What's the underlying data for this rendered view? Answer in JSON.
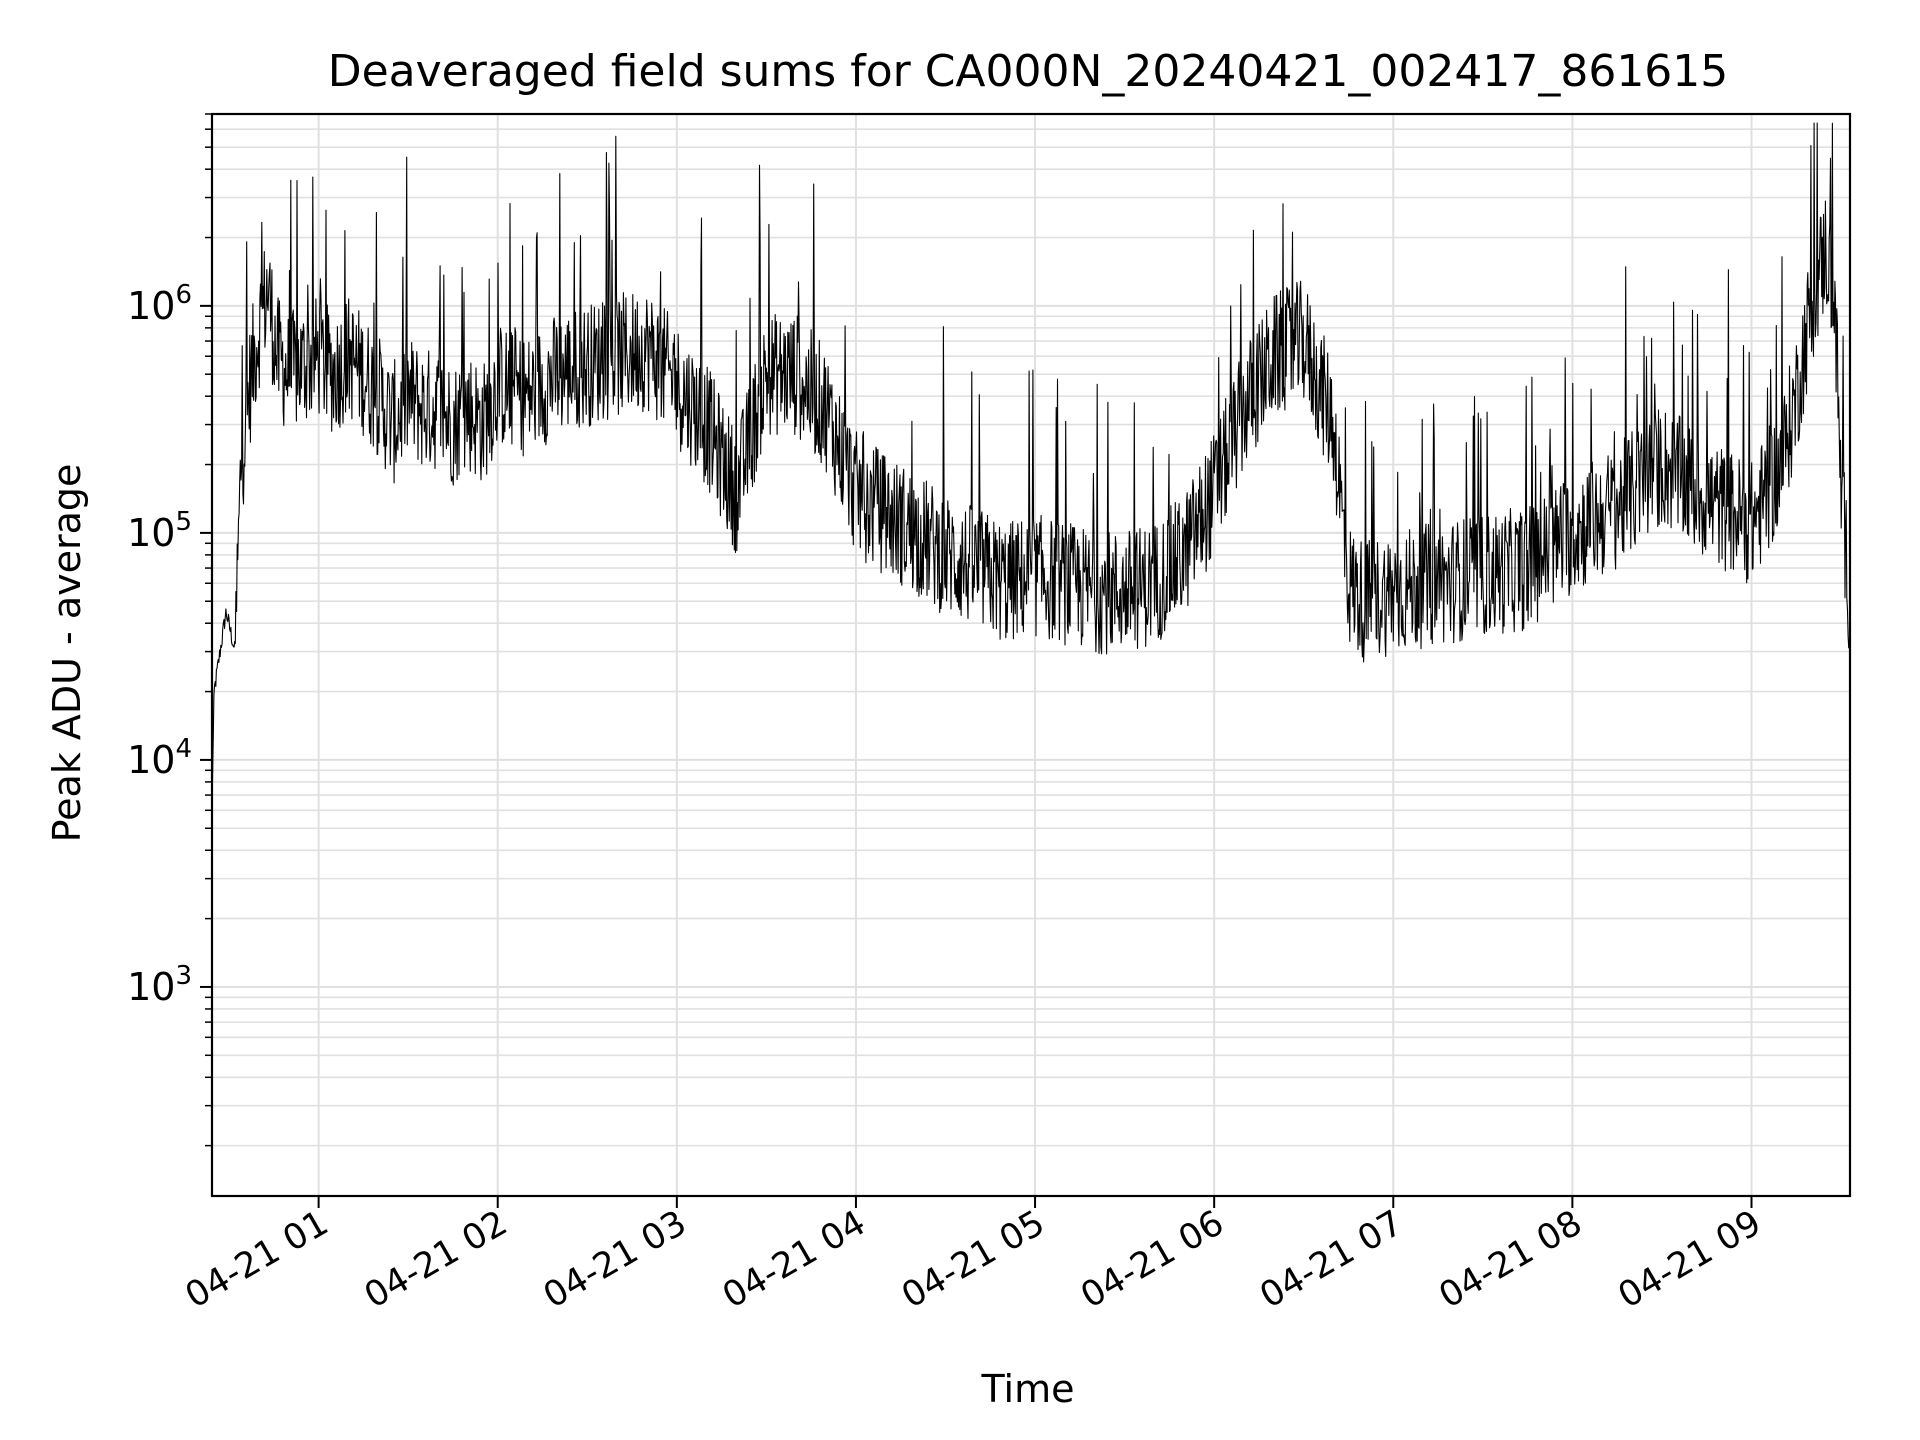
{
  "chart_data": {
    "type": "line",
    "title": "Deaveraged field sums for CA000N_20240421_002417_861615",
    "xlabel": "Time",
    "ylabel": "Peak ADU - average",
    "yscale": "log",
    "ylim": [
      120,
      7000000
    ],
    "xlim": [
      "2024-04-21 00:24:17",
      "2024-04-21 09:33:00"
    ],
    "grid": true,
    "line_color": "#000000",
    "grid_color": "#e0e0e0",
    "x_ticks": [
      {
        "value": "2024-04-21 01:00",
        "label": "04-21 01"
      },
      {
        "value": "2024-04-21 02:00",
        "label": "04-21 02"
      },
      {
        "value": "2024-04-21 03:00",
        "label": "04-21 03"
      },
      {
        "value": "2024-04-21 04:00",
        "label": "04-21 04"
      },
      {
        "value": "2024-04-21 05:00",
        "label": "04-21 05"
      },
      {
        "value": "2024-04-21 06:00",
        "label": "04-21 06"
      },
      {
        "value": "2024-04-21 07:00",
        "label": "04-21 07"
      },
      {
        "value": "2024-04-21 08:00",
        "label": "04-21 08"
      },
      {
        "value": "2024-04-21 09:00",
        "label": "04-21 09"
      }
    ],
    "y_ticks": [
      {
        "value": 1000,
        "base": "10",
        "exp": "3"
      },
      {
        "value": 10000,
        "base": "10",
        "exp": "4"
      },
      {
        "value": 100000,
        "base": "10",
        "exp": "5"
      },
      {
        "value": 1000000,
        "base": "10",
        "exp": "6"
      }
    ],
    "series": [
      {
        "x": [
          "2024-04-21 00:24",
          "2024-04-21 00:25",
          "2024-04-21 00:27",
          "2024-04-21 00:29",
          "2024-04-21 00:32",
          "2024-04-21 00:34",
          "2024-04-21 00:37",
          "2024-04-21 00:40",
          "2024-04-21 00:43",
          "2024-04-21 00:46",
          "2024-04-21 00:50",
          "2024-04-21 00:55",
          "2024-04-21 01:00",
          "2024-04-21 01:05",
          "2024-04-21 01:10",
          "2024-04-21 01:15",
          "2024-04-21 01:20",
          "2024-04-21 01:25",
          "2024-04-21 01:30",
          "2024-04-21 01:35",
          "2024-04-21 01:40",
          "2024-04-21 01:45",
          "2024-04-21 01:50",
          "2024-04-21 01:55",
          "2024-04-21 02:00",
          "2024-04-21 02:10",
          "2024-04-21 02:20",
          "2024-04-21 02:30",
          "2024-04-21 02:40",
          "2024-04-21 02:50",
          "2024-04-21 03:00",
          "2024-04-21 03:10",
          "2024-04-21 03:20",
          "2024-04-21 03:30",
          "2024-04-21 03:40",
          "2024-04-21 03:50",
          "2024-04-21 04:00",
          "2024-04-21 04:10",
          "2024-04-21 04:20",
          "2024-04-21 04:30",
          "2024-04-21 04:40",
          "2024-04-21 04:50",
          "2024-04-21 05:00",
          "2024-04-21 05:10",
          "2024-04-21 05:20",
          "2024-04-21 05:30",
          "2024-04-21 05:40",
          "2024-04-21 05:50",
          "2024-04-21 06:00",
          "2024-04-21 06:10",
          "2024-04-21 06:20",
          "2024-04-21 06:30",
          "2024-04-21 06:40",
          "2024-04-21 06:45",
          "2024-04-21 06:50",
          "2024-04-21 07:00",
          "2024-04-21 07:15",
          "2024-04-21 07:30",
          "2024-04-21 07:45",
          "2024-04-21 08:00",
          "2024-04-21 08:15",
          "2024-04-21 08:30",
          "2024-04-21 08:45",
          "2024-04-21 09:00",
          "2024-04-21 09:10",
          "2024-04-21 09:15",
          "2024-04-21 09:20",
          "2024-04-21 09:25",
          "2024-04-21 09:28",
          "2024-04-21 09:30",
          "2024-04-21 09:33"
        ],
        "y": [
          4000,
          20000,
          30000,
          45000,
          30000,
          200000,
          450000,
          800000,
          1200000,
          600000,
          500000,
          550000,
          600000,
          500000,
          600000,
          500000,
          400000,
          300000,
          400000,
          350000,
          350000,
          300000,
          350000,
          300000,
          450000,
          400000,
          500000,
          550000,
          600000,
          650000,
          450000,
          300000,
          150000,
          500000,
          500000,
          350000,
          150000,
          120000,
          100000,
          80000,
          70000,
          60000,
          65000,
          60000,
          55000,
          55000,
          60000,
          80000,
          150000,
          350000,
          600000,
          700000,
          300000,
          60000,
          50000,
          55000,
          60000,
          65000,
          70000,
          100000,
          130000,
          200000,
          140000,
          110000,
          200000,
          400000,
          1000000,
          1800000,
          1000000,
          150000,
          50000
        ]
      }
    ],
    "notes": "Dense noisy signal between roughly 5e4 and 3e6 with frequent spikes; series above is an approximate envelope of the trace."
  }
}
